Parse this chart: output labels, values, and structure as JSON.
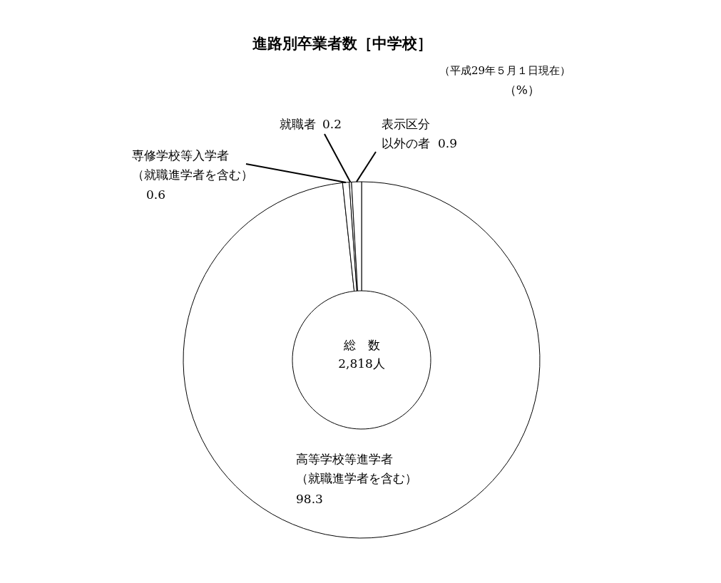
{
  "chart_data": {
    "type": "donut",
    "title": "進路別卒業者数［中学校］",
    "subtitle": "（平成29年５月１日現在）",
    "categories": [
      "高等学校等進学者（就職進学者を含む）",
      "専修学校等入学者（就職進学者を含む）",
      "就職者",
      "表示区分以外の者"
    ],
    "values": [
      98.3,
      0.6,
      0.2,
      0.9
    ],
    "colors": [
      "#ffffff",
      "#ffffff",
      "#ffffff",
      "#ffffff"
    ],
    "data_labels": true,
    "annotations": [
      "（%）",
      "総　数",
      "2,818人"
    ]
  }
}
